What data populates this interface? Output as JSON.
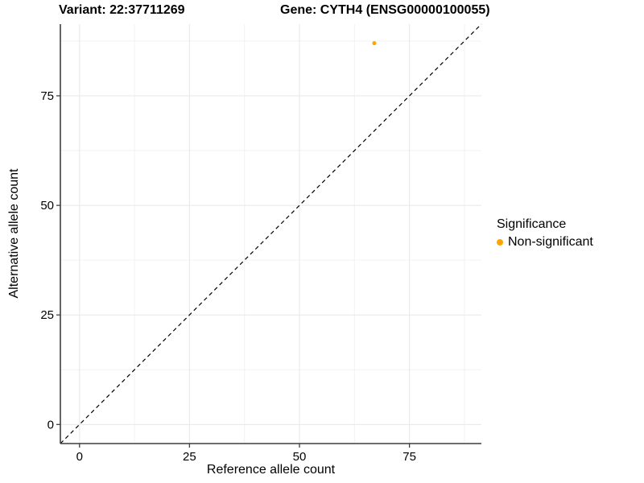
{
  "titles": {
    "variant": "Variant: 22:37711269",
    "gene": "Gene: CYTH4 (ENSG00000100055)"
  },
  "chart_data": {
    "type": "scatter",
    "xlabel": "Reference allele count",
    "ylabel": "Alternative allele count",
    "xlim": [
      -4.35,
      91.35
    ],
    "ylim": [
      -4.35,
      91.35
    ],
    "x_ticks": [
      0,
      25,
      50,
      75
    ],
    "y_ticks": [
      0,
      25,
      50,
      75
    ],
    "minor_ticks": [
      12.5,
      37.5,
      62.5,
      87.5
    ],
    "grid": "major+minor",
    "identity_line": {
      "type": "y=x",
      "style": "dashed",
      "color": "#000000"
    },
    "series": [
      {
        "name": "Non-significant",
        "color": "#FFA500",
        "points": [
          {
            "x": 67,
            "y": 87
          }
        ]
      }
    ],
    "legend": {
      "title": "Significance",
      "position": "right",
      "items": [
        {
          "label": "Non-significant",
          "color": "#FFA500"
        }
      ]
    },
    "style": {
      "major_grid_color": "#E7E7E7",
      "minor_grid_color": "#F2F2F2",
      "axis_color": "#3f3f3f",
      "tick_label_color": "#000000",
      "point_radius": 2.5
    }
  }
}
